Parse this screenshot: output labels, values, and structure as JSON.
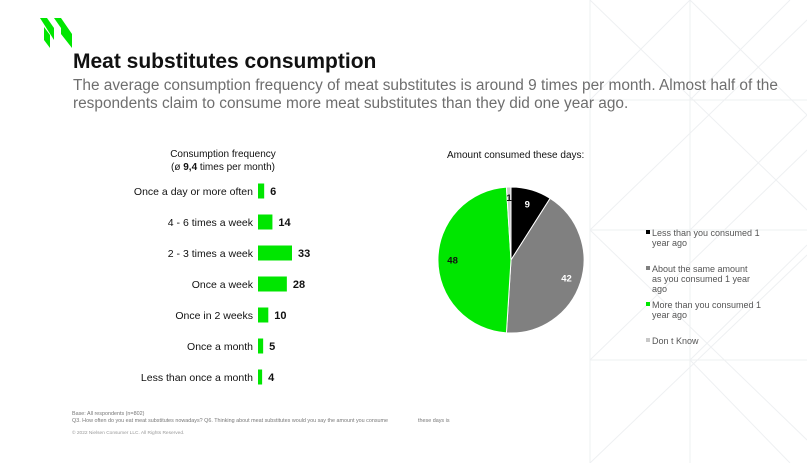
{
  "title": "Meat substitutes consumption",
  "subtitle": "The average consumption frequency of meat substitutes is around 9 times per month. Almost half of the respondents claim to consume more meat substitutes than they did one year ago.",
  "colors": {
    "accent": "#00e600",
    "black": "#000000",
    "gray": "#808080",
    "lightgray": "#c8c8c8"
  },
  "icons": {
    "logo": "nielsen-n-logo"
  },
  "chart_data": [
    {
      "type": "bar",
      "orientation": "horizontal",
      "header_line1": "Consumption frequency",
      "header_line2_prefix": "(ø ",
      "header_avg": "9,4",
      "header_line2_suffix": " times per month)",
      "categories": [
        "Once a day or more often",
        "4 - 6 times a week",
        "2 - 3 times a week",
        "Once a week",
        "Once in 2 weeks",
        "Once a month",
        "Less than once a month"
      ],
      "values": [
        6,
        14,
        33,
        28,
        10,
        5,
        4
      ],
      "color": "#00e600"
    },
    {
      "type": "pie",
      "title": "Amount consumed these days:",
      "labels": [
        "Less than you consumed 1 year ago",
        "About the same amount as you consumed 1 year ago",
        "More than you consumed 1 year ago",
        "Don t Know"
      ],
      "values": [
        9,
        42,
        48,
        1
      ],
      "colors": [
        "#000000",
        "#808080",
        "#00e600",
        "#c8c8c8"
      ],
      "label_colors": [
        "#ffffff",
        "#ffffff",
        "#111111",
        "#111111"
      ],
      "legend_position": "right"
    }
  ],
  "footnotes": {
    "base": "Base: All respondents (n=802)",
    "questions": "Q3. How often do you eat meat substitutes nowadays? Q6. Thinking about meat substitutes would you say the amount you consume",
    "questions_end": "these days is",
    "copyright": "© 2022 Nielsen Consumer LLC. All Rights Reserved."
  }
}
